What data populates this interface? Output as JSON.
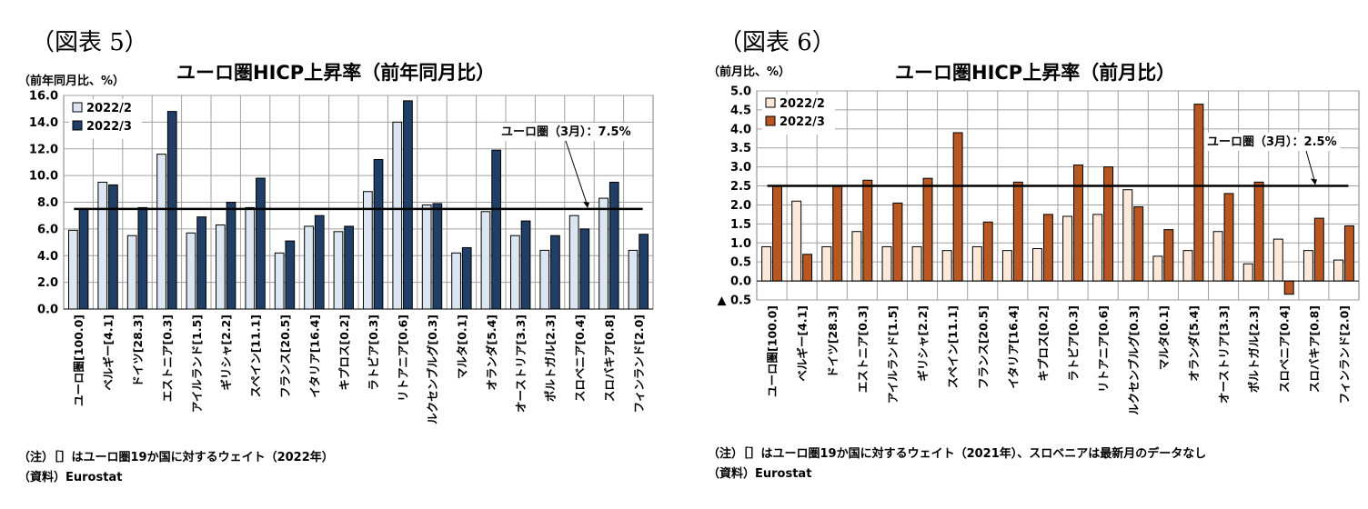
{
  "categories": [
    "ユーロ圏[100.0]",
    "ベルギー[4.1]",
    "ドイツ[28.3]",
    "エストニア[0.3]",
    "アイルランド[1.5]",
    "ギリシャ[2.2]",
    "スペイン[11.1]",
    "フランス[20.5]",
    "イタリア[16.4]",
    "キプロス[0.2]",
    "ラトビア[0.3]",
    "リトアニア[0.6]",
    "ルクセンブルグ[0.3]",
    "マルタ[0.1]",
    "オランダ[5.4]",
    "オーストリア[3.3]",
    "ポルトガル[2.3]",
    "スロベニア[0.4]",
    "スロバキア[0.8]",
    "フィンランド[2.0]"
  ],
  "left": {
    "fig_label": "（図表 5）",
    "unit": "（前年同月比、%）",
    "note1": "（注）［］はユーロ圏19か国に対するウェイト（2022年）",
    "note2": "（資料）Eurostat",
    "chart_data": {
      "type": "bar",
      "title": "ユーロ圏HICP上昇率（前年同月比）",
      "ylim": [
        0,
        16
      ],
      "yticks": [
        "0.0",
        "2.0",
        "4.0",
        "6.0",
        "8.0",
        "10.0",
        "12.0",
        "14.0",
        "16.0"
      ],
      "ystep": 2,
      "grid": true,
      "legend_position": "top-left",
      "series": [
        {
          "name": "2022/2",
          "color": "#dce6f2",
          "values": [
            5.9,
            9.5,
            5.5,
            11.6,
            5.7,
            6.3,
            7.6,
            4.2,
            6.2,
            5.8,
            8.8,
            14.0,
            7.8,
            4.2,
            7.3,
            5.5,
            4.4,
            7.0,
            8.3,
            4.4
          ]
        },
        {
          "name": "2022/3",
          "color": "#1f3f66",
          "values": [
            7.5,
            9.3,
            7.6,
            14.8,
            6.9,
            8.0,
            9.8,
            5.1,
            7.0,
            6.2,
            11.2,
            15.6,
            7.9,
            4.6,
            11.9,
            6.6,
            5.5,
            6.0,
            9.5,
            5.6
          ]
        }
      ],
      "reference_line": {
        "value": 7.5,
        "label": "ユーロ圏（3月）：7.5%"
      }
    }
  },
  "right": {
    "fig_label": "（図表 6）",
    "unit": "（前月比、%）",
    "note1": "（注）［］はユーロ圏19か国に対するウェイト（2021年）、スロベニアは最新月のデータなし",
    "note2": "（資料）Eurostat",
    "chart_data": {
      "type": "bar",
      "title": "ユーロ圏HICP上昇率（前月比）",
      "ylim": [
        -0.5,
        5
      ],
      "yticks": [
        "▲ 0.5",
        "0.0",
        "0.5",
        "1.0",
        "1.5",
        "2.0",
        "2.5",
        "3.0",
        "3.5",
        "4.0",
        "4.5",
        "5.0"
      ],
      "ystep": 0.5,
      "grid": true,
      "legend_position": "top-left",
      "series": [
        {
          "name": "2022/2",
          "color": "#fde9d9",
          "values": [
            0.9,
            2.1,
            0.9,
            1.3,
            0.9,
            0.9,
            0.8,
            0.9,
            0.8,
            0.85,
            1.7,
            1.75,
            2.4,
            0.65,
            0.8,
            1.3,
            0.45,
            1.1,
            0.8,
            0.55
          ]
        },
        {
          "name": "2022/3",
          "color": "#b8571f",
          "values": [
            2.5,
            0.7,
            2.5,
            2.65,
            2.05,
            2.7,
            3.9,
            1.55,
            2.6,
            1.75,
            3.05,
            3.0,
            1.95,
            1.35,
            4.65,
            2.3,
            2.6,
            -0.35,
            1.65,
            1.45
          ]
        }
      ],
      "reference_line": {
        "value": 2.5,
        "label": "ユーロ圏（3月）：2.5%"
      }
    }
  }
}
